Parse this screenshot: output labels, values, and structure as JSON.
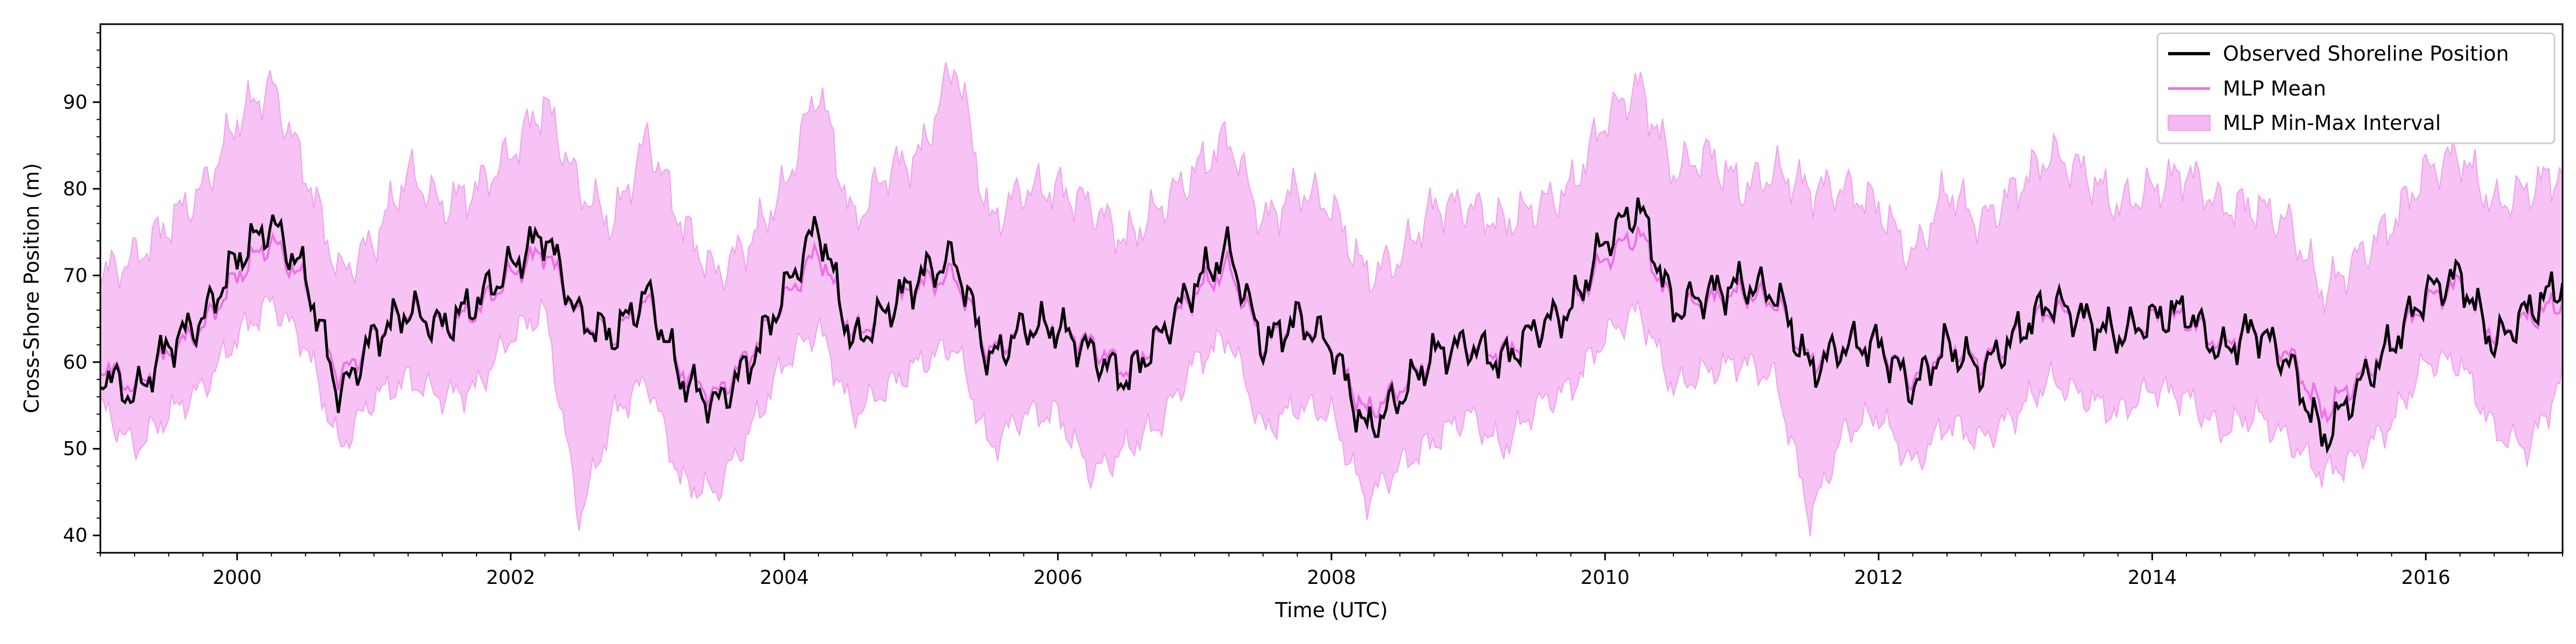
{
  "chart_data": {
    "type": "line",
    "xlabel": "Time (UTC)",
    "ylabel": "Cross-Shore Position (m)",
    "x_range": [
      "1999-01-01",
      "2017-01-01"
    ],
    "ylim": [
      38,
      99
    ],
    "x_ticks": [
      "2000",
      "2002",
      "2004",
      "2006",
      "2008",
      "2010",
      "2012",
      "2014",
      "2016"
    ],
    "y_ticks": [
      "40",
      "50",
      "60",
      "70",
      "80",
      "90"
    ],
    "grid": false,
    "legend_position": "top-right",
    "legend": {
      "observed": "Observed Shoreline Position",
      "mean": "MLP Mean",
      "interval": "MLP Min-Max Interval"
    },
    "colors": {
      "observed": "#000000",
      "mean": "#ee6fe8",
      "interval_fill": "#f5b8f2",
      "interval_edge": "#f0a0ec"
    },
    "series": [
      {
        "name": "Observed Shoreline Position",
        "x": [
          "1999-01",
          "1999-04",
          "1999-07",
          "1999-10",
          "2000-01",
          "2000-04",
          "2000-07",
          "2000-10",
          "2001-01",
          "2001-04",
          "2001-07",
          "2001-10",
          "2002-01",
          "2002-04",
          "2002-07",
          "2002-10",
          "2003-01",
          "2003-04",
          "2003-07",
          "2003-10",
          "2004-01",
          "2004-04",
          "2004-07",
          "2004-10",
          "2005-01",
          "2005-04",
          "2005-07",
          "2005-10",
          "2006-01",
          "2006-04",
          "2006-07",
          "2006-10",
          "2007-01",
          "2007-04",
          "2007-07",
          "2007-10",
          "2008-01",
          "2008-04",
          "2008-07",
          "2008-10",
          "2009-01",
          "2009-04",
          "2009-07",
          "2009-10",
          "2010-01",
          "2010-04",
          "2010-07",
          "2010-10",
          "2011-01",
          "2011-04",
          "2011-07",
          "2011-10",
          "2012-01",
          "2012-04",
          "2012-07",
          "2012-10",
          "2013-01",
          "2013-04",
          "2013-07",
          "2013-10",
          "2014-01",
          "2014-04",
          "2014-07",
          "2014-10",
          "2015-01",
          "2015-04",
          "2015-07",
          "2015-10",
          "2016-01",
          "2016-04",
          "2016-07",
          "2016-10",
          "2017-01"
        ],
        "values": [
          59,
          56,
          62,
          65,
          72,
          76,
          70,
          56,
          63,
          66,
          64,
          67,
          71,
          75,
          65,
          63,
          68,
          58,
          55,
          60,
          68,
          76,
          62,
          66,
          70,
          72,
          60,
          64,
          64,
          61,
          58,
          63,
          69,
          73,
          62,
          65,
          62,
          52,
          56,
          61,
          62,
          60,
          64,
          66,
          74,
          78,
          66,
          68,
          69,
          68,
          59,
          62,
          62,
          57,
          62,
          59,
          63,
          67,
          65,
          63,
          65,
          66,
          61,
          64,
          60,
          51,
          57,
          62,
          68,
          70,
          62,
          66,
          69
        ]
      },
      {
        "name": "MLP Mean",
        "x": [
          "1999-01",
          "1999-04",
          "1999-07",
          "1999-10",
          "2000-01",
          "2000-04",
          "2000-07",
          "2000-10",
          "2001-01",
          "2001-04",
          "2001-07",
          "2001-10",
          "2002-01",
          "2002-04",
          "2002-07",
          "2002-10",
          "2003-01",
          "2003-04",
          "2003-07",
          "2003-10",
          "2004-01",
          "2004-04",
          "2004-07",
          "2004-10",
          "2005-01",
          "2005-04",
          "2005-07",
          "2005-10",
          "2006-01",
          "2006-04",
          "2006-07",
          "2006-10",
          "2007-01",
          "2007-04",
          "2007-07",
          "2007-10",
          "2008-01",
          "2008-04",
          "2008-07",
          "2008-10",
          "2009-01",
          "2009-04",
          "2009-07",
          "2009-10",
          "2010-01",
          "2010-04",
          "2010-07",
          "2010-10",
          "2011-01",
          "2011-04",
          "2011-07",
          "2011-10",
          "2012-01",
          "2012-04",
          "2012-07",
          "2012-10",
          "2013-01",
          "2013-04",
          "2013-07",
          "2013-10",
          "2014-01",
          "2014-04",
          "2014-07",
          "2014-10",
          "2015-01",
          "2015-04",
          "2015-07",
          "2015-10",
          "2016-01",
          "2016-04",
          "2016-07",
          "2016-10",
          "2017-01"
        ],
        "values": [
          60,
          57,
          61,
          64,
          70,
          74,
          69,
          58,
          63,
          66,
          64,
          66,
          70,
          73,
          65,
          63,
          67,
          59,
          56,
          61,
          67,
          73,
          63,
          66,
          69,
          70,
          61,
          64,
          64,
          62,
          59,
          63,
          68,
          71,
          62,
          65,
          62,
          54,
          57,
          61,
          62,
          61,
          64,
          66,
          72,
          75,
          66,
          67,
          68,
          67,
          60,
          62,
          62,
          58,
          62,
          60,
          63,
          66,
          65,
          63,
          65,
          65,
          62,
          64,
          61,
          54,
          58,
          62,
          67,
          69,
          63,
          65,
          67
        ]
      },
      {
        "name": "MLP Min-Max Interval",
        "x": [
          "1999-01",
          "1999-04",
          "1999-07",
          "1999-10",
          "2000-01",
          "2000-04",
          "2000-07",
          "2000-10",
          "2001-01",
          "2001-04",
          "2001-07",
          "2001-10",
          "2002-01",
          "2002-04",
          "2002-07",
          "2002-10",
          "2003-01",
          "2003-04",
          "2003-07",
          "2003-10",
          "2004-01",
          "2004-04",
          "2004-07",
          "2004-10",
          "2005-01",
          "2005-04",
          "2005-07",
          "2005-10",
          "2006-01",
          "2006-04",
          "2006-07",
          "2006-10",
          "2007-01",
          "2007-04",
          "2007-07",
          "2007-10",
          "2008-01",
          "2008-04",
          "2008-07",
          "2008-10",
          "2009-01",
          "2009-04",
          "2009-07",
          "2009-10",
          "2010-01",
          "2010-04",
          "2010-07",
          "2010-10",
          "2011-01",
          "2011-04",
          "2011-07",
          "2011-10",
          "2012-01",
          "2012-04",
          "2012-07",
          "2012-10",
          "2013-01",
          "2013-04",
          "2013-07",
          "2013-10",
          "2014-01",
          "2014-04",
          "2014-07",
          "2014-10",
          "2015-01",
          "2015-04",
          "2015-07",
          "2015-10",
          "2016-01",
          "2016-04",
          "2016-07",
          "2016-10",
          "2017-01"
        ],
        "min": [
          55,
          50,
          54,
          57,
          63,
          67,
          62,
          50,
          56,
          58,
          56,
          57,
          63,
          66,
          42,
          54,
          58,
          46,
          45,
          52,
          60,
          64,
          54,
          57,
          60,
          62,
          50,
          54,
          54,
          47,
          50,
          53,
          60,
          63,
          52,
          55,
          54,
          44,
          48,
          51,
          54,
          50,
          55,
          57,
          63,
          66,
          57,
          59,
          60,
          58,
          42,
          52,
          54,
          48,
          53,
          51,
          54,
          58,
          56,
          54,
          57,
          56,
          52,
          54,
          51,
          47,
          49,
          53,
          60,
          60,
          52,
          50,
          58
        ],
        "max": [
          70,
          72,
          76,
          80,
          88,
          92,
          82,
          70,
          74,
          82,
          78,
          80,
          84,
          90,
          80,
          76,
          86,
          76,
          70,
          74,
          80,
          92,
          76,
          82,
          84,
          95,
          76,
          80,
          80,
          78,
          74,
          78,
          82,
          86,
          76,
          80,
          78,
          70,
          72,
          78,
          78,
          76,
          78,
          80,
          88,
          92,
          82,
          84,
          80,
          82,
          80,
          80,
          78,
          72,
          80,
          76,
          80,
          84,
          82,
          78,
          80,
          82,
          78,
          78,
          76,
          68,
          72,
          76,
          82,
          84,
          78,
          80,
          82
        ]
      }
    ]
  }
}
